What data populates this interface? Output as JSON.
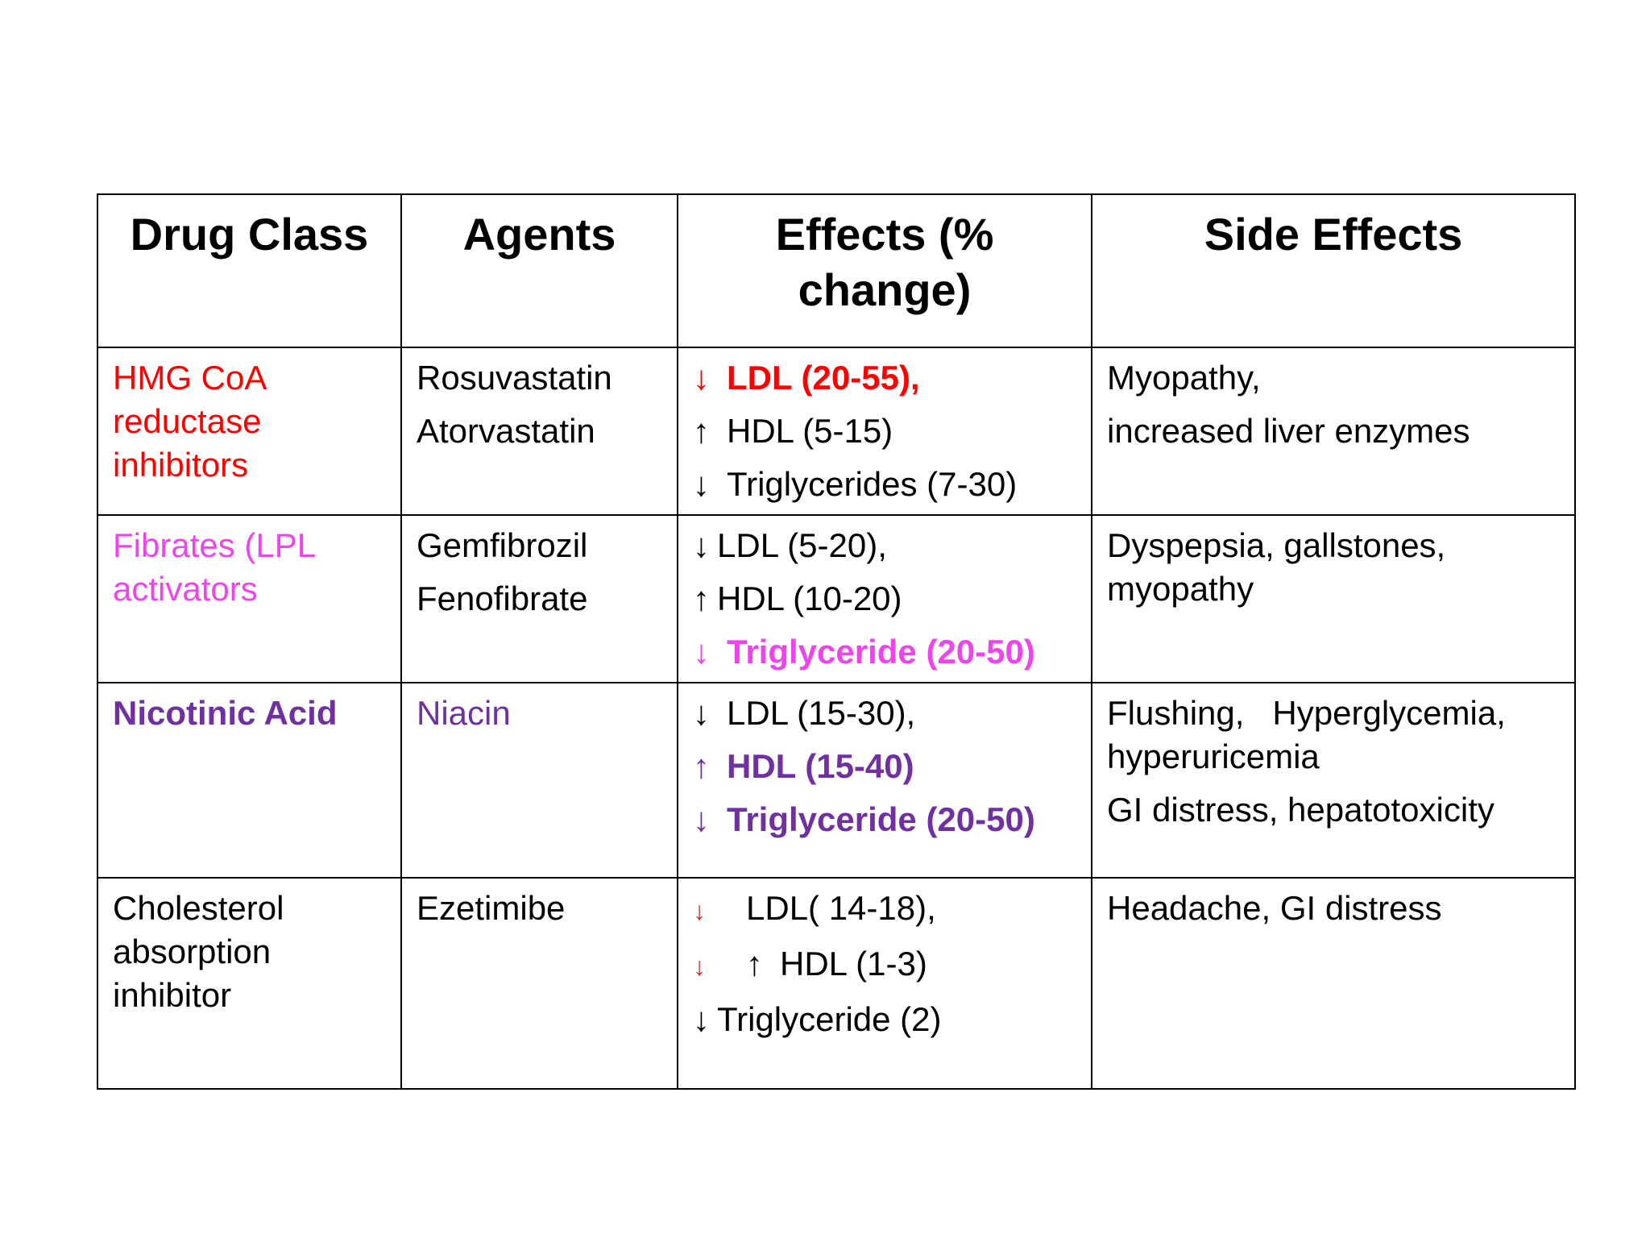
{
  "table": {
    "headers": [
      "Drug Class",
      "Agents",
      "Effects (% change)",
      "Side Effects"
    ],
    "rows": [
      {
        "drug_class": "HMG CoA reductase inhibitors",
        "agents": [
          "Rosuvastatin",
          "Atorvastatin"
        ],
        "effects": [
          {
            "arrow": "↓",
            "text": "LDL (20-55),"
          },
          {
            "arrow": "↑",
            "text": "HDL (5-15)"
          },
          {
            "arrow": "↓",
            "text": "Triglycerides (7-30)"
          }
        ],
        "side_effects": [
          "Myopathy,",
          "increased liver enzymes"
        ]
      },
      {
        "drug_class": "Fibrates (LPL activators",
        "agents": [
          "Gemfibrozil",
          "Fenofibrate"
        ],
        "effects": [
          {
            "arrow": "↓",
            "text": "LDL (5-20),"
          },
          {
            "arrow": "↑",
            "text": "HDL (10-20)"
          },
          {
            "arrow": "↓",
            "text": "Triglyceride (20-50)"
          }
        ],
        "side_effects": [
          "Dyspepsia, gallstones, myopathy"
        ]
      },
      {
        "drug_class": "Nicotinic Acid",
        "agents": [
          "Niacin"
        ],
        "effects": [
          {
            "arrow": "↓",
            "text": "LDL (15-30),"
          },
          {
            "arrow": "↑",
            "text": "HDL (15-40)"
          },
          {
            "arrow": "↓",
            "text": "Triglyceride (20-50)"
          }
        ],
        "side_effects": [
          "Flushing,   Hyperglycemia, hyperuricemia",
          "GI distress, hepatotoxicity"
        ]
      },
      {
        "drug_class": "Cholesterol absorption inhibitor",
        "agents": [
          "Ezetimibe"
        ],
        "effects": [
          {
            "arrow": "↓",
            "text": "LDL( 14-18),"
          },
          {
            "arrow": "↓",
            "arrow2": "↑",
            "text": "HDL (1-3)"
          },
          {
            "arrow": "↓",
            "text": "Triglyceride (2)"
          }
        ],
        "side_effects": [
          "Headache, GI distress"
        ]
      }
    ]
  },
  "colors": {
    "red": "#ff0000",
    "pink": "#ee44ee",
    "purple": "#7030a0",
    "border": "#000000"
  }
}
